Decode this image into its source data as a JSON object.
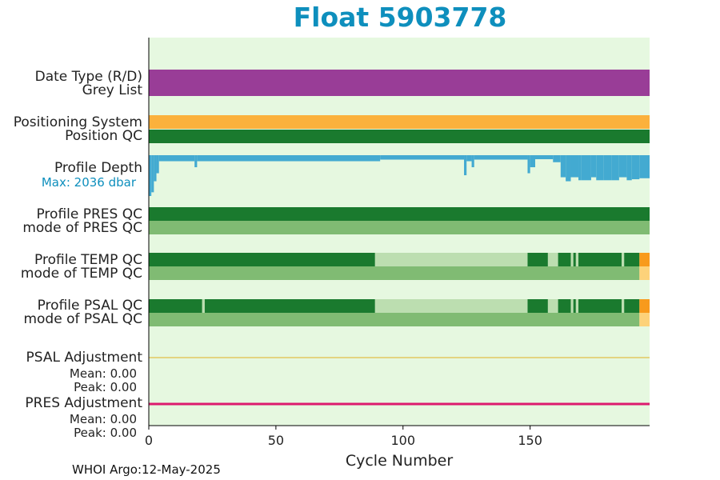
{
  "title": "Float 5903778",
  "footer": "WHOI Argo:12-May-2025",
  "colors": {
    "title": "#0e8fbd",
    "plot_background": "#e6f8e0",
    "greylist": "#993d97",
    "positioning": "#fbb13c",
    "qc_good": "#1a7a2e",
    "qc_mode": "#80bb73",
    "qc_light": "#bcdeb0",
    "qc_bad": "#f89a1c",
    "qc_mode_bad": "#fdd27a",
    "profile_depth": "#43aad1",
    "psal_adjustment": "#e0b020",
    "pres_adjustment": "#dc1a6e"
  },
  "rows": {
    "date_type": "Date Type (R/D)",
    "grey_list": "Grey List",
    "positioning_system": "Positioning System",
    "position_qc": "Position QC",
    "profile_depth": "Profile Depth",
    "max_depth": "Max: 2036 dbar",
    "pres_qc": "Profile PRES QC",
    "pres_mode": "mode of PRES QC",
    "temp_qc": "Profile TEMP QC",
    "temp_mode": "mode of TEMP QC",
    "psal_qc": "Profile PSAL QC",
    "psal_mode": "mode of PSAL QC",
    "psal_adjustment": "PSAL Adjustment",
    "psal_mean": "Mean: 0.00",
    "psal_peak": "Peak: 0.00",
    "pres_adjustment": "PRES Adjustment",
    "pres_mean": "Mean: 0.00",
    "pres_peak": "Peak: 0.00"
  },
  "chart_data": {
    "type": "bar",
    "xlabel": "Cycle Number",
    "xlim": [
      0,
      197
    ],
    "xticks": [
      0,
      50,
      100,
      150
    ],
    "n_cycles": 197,
    "max_depth_dbar": 2036,
    "depth_steps": [
      {
        "from": 0,
        "to": 1,
        "depth": 2036
      },
      {
        "from": 1,
        "to": 2,
        "depth": 1850
      },
      {
        "from": 2,
        "to": 3,
        "depth": 1300
      },
      {
        "from": 3,
        "to": 4,
        "depth": 900
      },
      {
        "from": 4,
        "to": 18,
        "depth": 300
      },
      {
        "from": 18,
        "to": 19,
        "depth": 600
      },
      {
        "from": 19,
        "to": 91,
        "depth": 300
      },
      {
        "from": 91,
        "to": 124,
        "depth": 220
      },
      {
        "from": 124,
        "to": 125,
        "depth": 1000
      },
      {
        "from": 125,
        "to": 127,
        "depth": 300
      },
      {
        "from": 127,
        "to": 128,
        "depth": 600
      },
      {
        "from": 128,
        "to": 149,
        "depth": 220
      },
      {
        "from": 149,
        "to": 150,
        "depth": 900
      },
      {
        "from": 150,
        "to": 152,
        "depth": 600
      },
      {
        "from": 152,
        "to": 159,
        "depth": 200
      },
      {
        "from": 159,
        "to": 162,
        "depth": 350
      },
      {
        "from": 162,
        "to": 164,
        "depth": 1100
      },
      {
        "from": 164,
        "to": 166,
        "depth": 1300
      },
      {
        "from": 166,
        "to": 169,
        "depth": 1100
      },
      {
        "from": 169,
        "to": 170,
        "depth": 1250
      },
      {
        "from": 170,
        "to": 174,
        "depth": 1250
      },
      {
        "from": 174,
        "to": 176,
        "depth": 1100
      },
      {
        "from": 176,
        "to": 179,
        "depth": 1250
      },
      {
        "from": 179,
        "to": 182,
        "depth": 1250
      },
      {
        "from": 182,
        "to": 185,
        "depth": 1250
      },
      {
        "from": 185,
        "to": 188,
        "depth": 1100
      },
      {
        "from": 188,
        "to": 190,
        "depth": 1250
      },
      {
        "from": 190,
        "to": 193,
        "depth": 1200
      },
      {
        "from": 193,
        "to": 197,
        "depth": 1150
      }
    ],
    "greylist_segments": [
      {
        "from": 0,
        "to": 197,
        "color": "greylist"
      }
    ],
    "positioning_segments": [
      {
        "from": 0,
        "to": 197,
        "color": "positioning"
      }
    ],
    "position_qc_segments": [
      {
        "from": 0,
        "to": 197,
        "color": "qc_good"
      }
    ],
    "pres_qc_segments": [
      {
        "from": 0,
        "to": 197,
        "color": "qc_good"
      }
    ],
    "pres_mode_segments": [
      {
        "from": 0,
        "to": 197,
        "color": "qc_mode"
      }
    ],
    "temp_qc_segments": [
      {
        "from": 0,
        "to": 89,
        "color": "qc_good"
      },
      {
        "from": 89,
        "to": 149,
        "color": "qc_light"
      },
      {
        "from": 149,
        "to": 157,
        "color": "qc_good"
      },
      {
        "from": 157,
        "to": 161,
        "color": "qc_light"
      },
      {
        "from": 161,
        "to": 166,
        "color": "qc_good"
      },
      {
        "from": 166,
        "to": 167,
        "color": "qc_light"
      },
      {
        "from": 167,
        "to": 168,
        "color": "qc_good"
      },
      {
        "from": 168,
        "to": 169,
        "color": "qc_light"
      },
      {
        "from": 169,
        "to": 186,
        "color": "qc_good"
      },
      {
        "from": 186,
        "to": 187,
        "color": "qc_light"
      },
      {
        "from": 187,
        "to": 193,
        "color": "qc_good"
      },
      {
        "from": 193,
        "to": 197,
        "color": "qc_bad"
      }
    ],
    "temp_mode_segments": [
      {
        "from": 0,
        "to": 193,
        "color": "qc_mode"
      },
      {
        "from": 193,
        "to": 197,
        "color": "qc_mode_bad"
      }
    ],
    "psal_qc_segments": [
      {
        "from": 0,
        "to": 21,
        "color": "qc_good"
      },
      {
        "from": 21,
        "to": 22,
        "color": "qc_light"
      },
      {
        "from": 22,
        "to": 89,
        "color": "qc_good"
      },
      {
        "from": 89,
        "to": 149,
        "color": "qc_light"
      },
      {
        "from": 149,
        "to": 157,
        "color": "qc_good"
      },
      {
        "from": 157,
        "to": 161,
        "color": "qc_light"
      },
      {
        "from": 161,
        "to": 166,
        "color": "qc_good"
      },
      {
        "from": 166,
        "to": 167,
        "color": "qc_light"
      },
      {
        "from": 167,
        "to": 168,
        "color": "qc_good"
      },
      {
        "from": 168,
        "to": 169,
        "color": "qc_light"
      },
      {
        "from": 169,
        "to": 186,
        "color": "qc_good"
      },
      {
        "from": 186,
        "to": 187,
        "color": "qc_light"
      },
      {
        "from": 187,
        "to": 193,
        "color": "qc_good"
      },
      {
        "from": 193,
        "to": 197,
        "color": "qc_bad"
      }
    ],
    "psal_mode_segments": [
      {
        "from": 0,
        "to": 193,
        "color": "qc_mode"
      },
      {
        "from": 193,
        "to": 197,
        "color": "qc_mode_bad"
      }
    ],
    "psal_adjustment_values": {
      "from": 0,
      "to": 197,
      "value": 0.0
    },
    "pres_adjustment_values": {
      "from": 0,
      "to": 197,
      "value": 0.0
    }
  }
}
